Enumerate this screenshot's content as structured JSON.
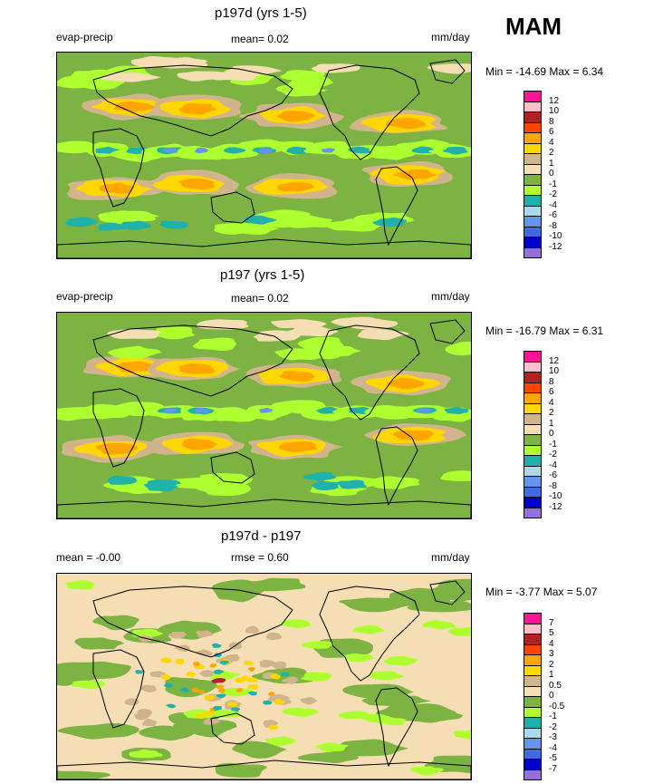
{
  "season": "MAM",
  "panels": [
    {
      "title": "p197d (yrs 1-5)",
      "left_label": "evap-precip",
      "center_label": "mean=   0.02",
      "units": "mm/day",
      "minmax": "Min = -14.69 Max =   6.34",
      "legend": {
        "labels": [
          "12",
          "10",
          "8",
          "6",
          "4",
          "2",
          "1",
          "0",
          "-1",
          "-2",
          "-4",
          "-6",
          "-8",
          "-10",
          "-12"
        ],
        "colors": [
          "#ff1493",
          "#ffc0cb",
          "#b22222",
          "#ff4500",
          "#ffa500",
          "#ffd700",
          "#d2b48c",
          "#f5deb3",
          "#7cb342",
          "#adff2f",
          "#20b2aa",
          "#add8e6",
          "#6495ed",
          "#4169e1",
          "#0000cd",
          "#9370db"
        ]
      }
    },
    {
      "title": "p197 (yrs 1-5)",
      "left_label": "evap-precip",
      "center_label": "mean=   0.02",
      "units": "mm/day",
      "minmax": "Min = -16.79 Max =   6.31",
      "legend": {
        "labels": [
          "12",
          "10",
          "8",
          "6",
          "4",
          "2",
          "1",
          "0",
          "-1",
          "-2",
          "-4",
          "-6",
          "-8",
          "-10",
          "-12"
        ],
        "colors": [
          "#ff1493",
          "#ffc0cb",
          "#b22222",
          "#ff4500",
          "#ffa500",
          "#ffd700",
          "#d2b48c",
          "#f5deb3",
          "#7cb342",
          "#adff2f",
          "#20b2aa",
          "#add8e6",
          "#6495ed",
          "#4169e1",
          "#0000cd",
          "#9370db"
        ]
      }
    },
    {
      "title": "p197d - p197",
      "left_label": "mean =  -0.00",
      "center_label": "rmse =   0.60",
      "units": "mm/day",
      "minmax": "Min =  -3.77 Max =   5.07",
      "legend": {
        "labels": [
          "7",
          "5",
          "4",
          "3",
          "2",
          "1",
          "0.5",
          "0",
          "-0.5",
          "-1",
          "-2",
          "-3",
          "-4",
          "-5",
          "-7"
        ],
        "colors": [
          "#ff1493",
          "#ffc0cb",
          "#b22222",
          "#ff4500",
          "#ffa500",
          "#ffd700",
          "#d2b48c",
          "#f5deb3",
          "#7cb342",
          "#adff2f",
          "#20b2aa",
          "#add8e6",
          "#6495ed",
          "#4169e1",
          "#0000cd",
          "#9370db"
        ]
      }
    }
  ],
  "chart_data": [
    {
      "type": "heatmap",
      "title": "p197d (yrs 1-5)",
      "variable": "evap-precip",
      "units": "mm/day",
      "mean": 0.02,
      "min": -14.69,
      "max": 6.34,
      "contour_levels": [
        -12,
        -10,
        -8,
        -6,
        -4,
        -2,
        -1,
        0,
        1,
        2,
        4,
        6,
        8,
        10,
        12
      ]
    },
    {
      "type": "heatmap",
      "title": "p197 (yrs 1-5)",
      "variable": "evap-precip",
      "units": "mm/day",
      "mean": 0.02,
      "min": -16.79,
      "max": 6.31,
      "contour_levels": [
        -12,
        -10,
        -8,
        -6,
        -4,
        -2,
        -1,
        0,
        1,
        2,
        4,
        6,
        8,
        10,
        12
      ]
    },
    {
      "type": "heatmap",
      "title": "p197d - p197",
      "units": "mm/day",
      "mean": -0.0,
      "rmse": 0.6,
      "min": -3.77,
      "max": 5.07,
      "contour_levels": [
        -7,
        -5,
        -4,
        -3,
        -2,
        -1,
        -0.5,
        0,
        0.5,
        1,
        2,
        3,
        4,
        5,
        7
      ]
    }
  ]
}
